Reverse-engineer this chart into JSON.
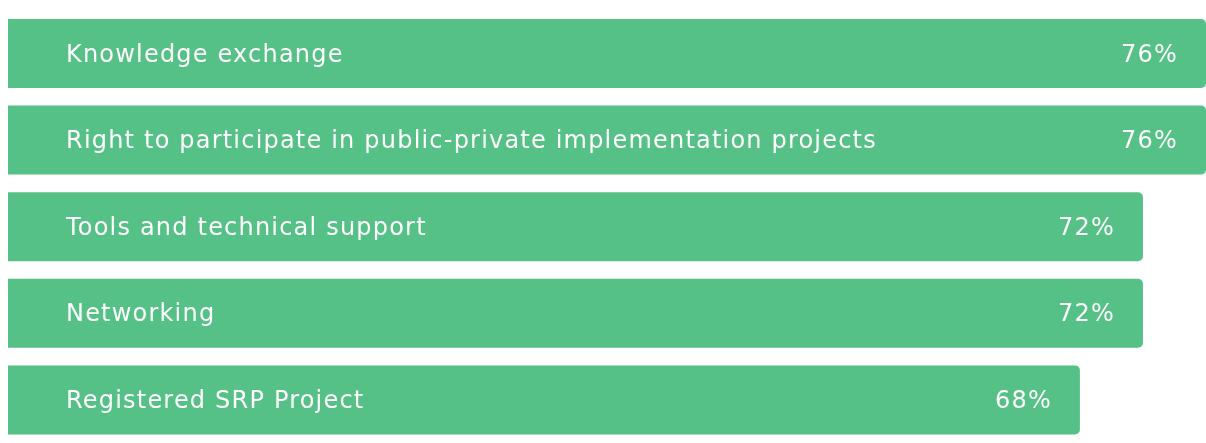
{
  "chart_data": {
    "type": "bar",
    "orientation": "horizontal",
    "categories": [
      "Knowledge exchange",
      "Right to participate in public-private implementation projects",
      "Tools and technical support",
      "Networking",
      "Registered SRP Project"
    ],
    "values": [
      76,
      76,
      72,
      72,
      68
    ],
    "value_labels": [
      "76%",
      "76%",
      "72%",
      "72%",
      "68%"
    ],
    "color": "#55c186",
    "legend": false,
    "grid": false
  }
}
